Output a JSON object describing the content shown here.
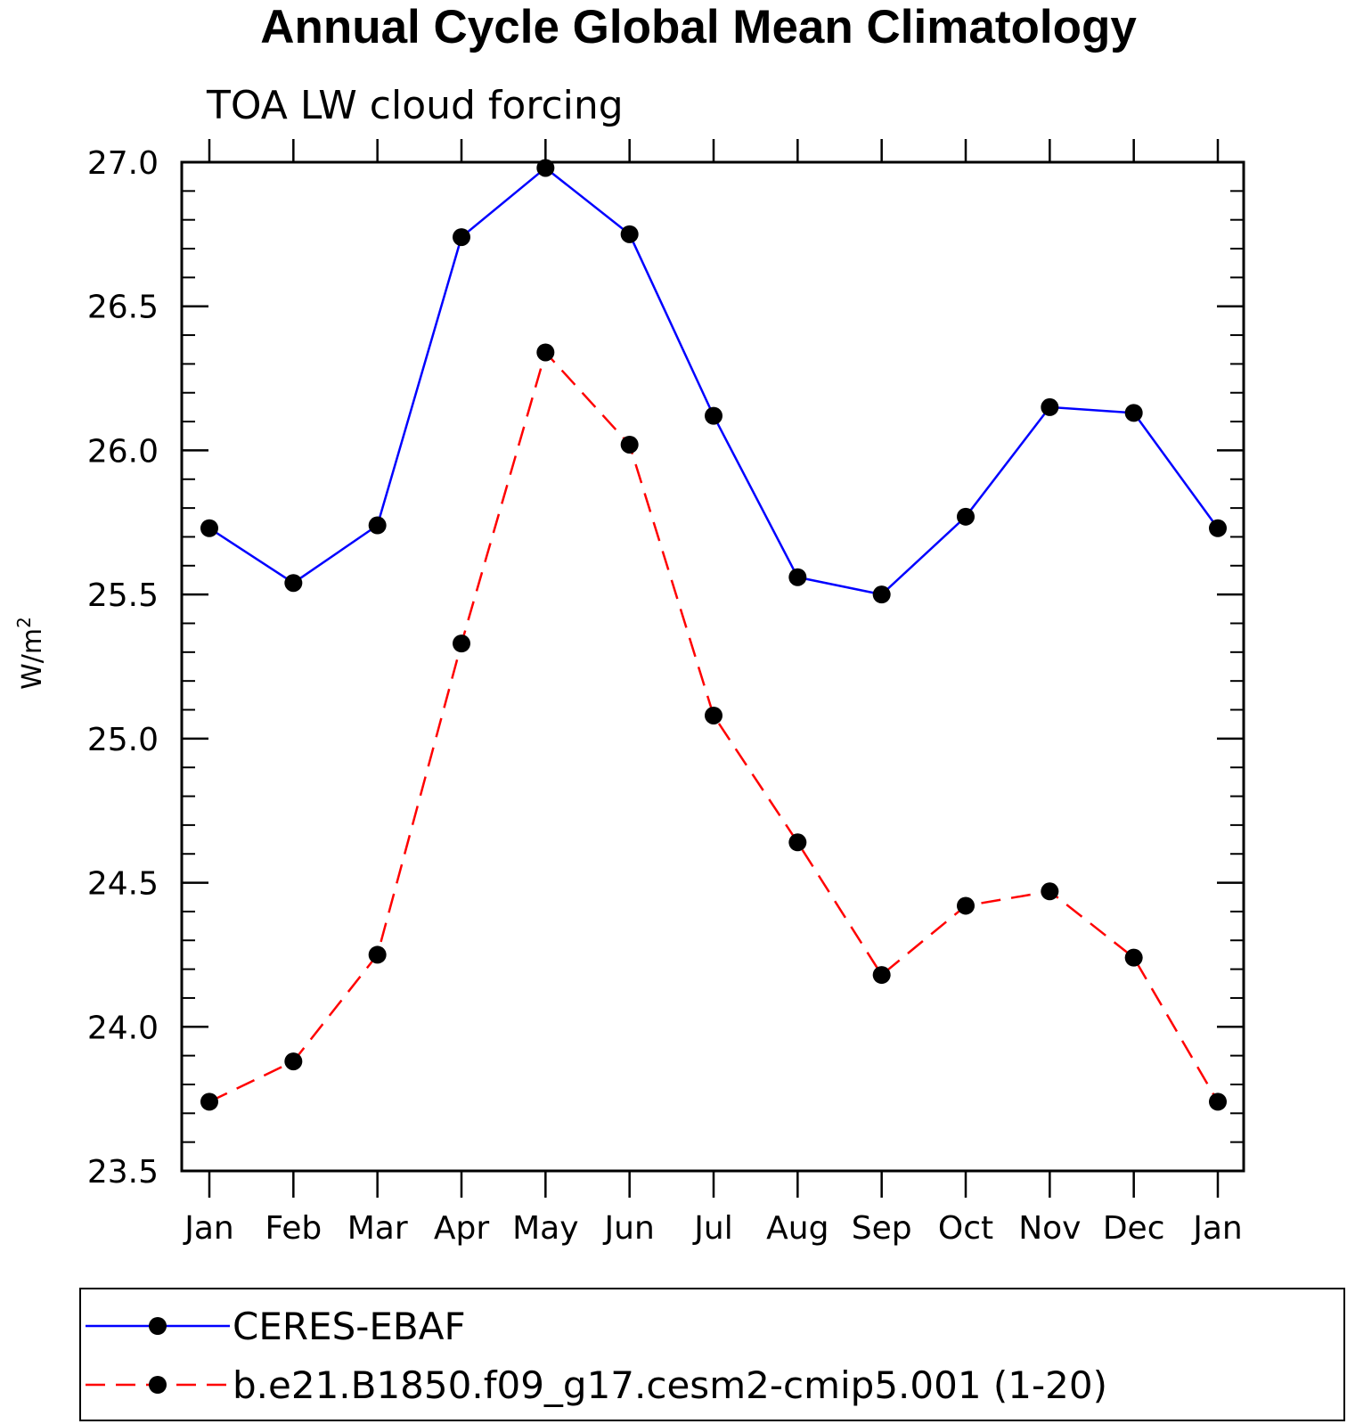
{
  "chart_data": {
    "type": "line",
    "title": "Annual Cycle Global Mean Climatology",
    "subtitle": "TOA LW cloud forcing",
    "ylabel": "W/m",
    "ylabel_superscript": "2",
    "xlabel": "",
    "categories": [
      "Jan",
      "Feb",
      "Mar",
      "Apr",
      "May",
      "Jun",
      "Jul",
      "Aug",
      "Sep",
      "Oct",
      "Nov",
      "Dec",
      "Jan"
    ],
    "ylim": [
      23.5,
      27.0
    ],
    "yticks": [
      "23.5",
      "24.0",
      "24.5",
      "25.0",
      "25.5",
      "26.0",
      "26.5",
      "27.0"
    ],
    "grid": false,
    "legend_position": "bottom",
    "series": [
      {
        "name": "CERES-EBAF",
        "color": "#0000ff",
        "dash": "solid",
        "marker": "filled-circle",
        "values": [
          25.73,
          25.54,
          25.74,
          26.74,
          26.98,
          26.75,
          26.12,
          25.56,
          25.5,
          25.77,
          26.15,
          26.13,
          25.73
        ]
      },
      {
        "name": "b.e21.B1850.f09_g17.cesm2-cmip5.001 (1-20)",
        "color": "#ff0000",
        "dash": "dashed",
        "marker": "filled-circle",
        "values": [
          23.74,
          23.88,
          24.25,
          25.33,
          26.34,
          26.02,
          25.08,
          24.64,
          24.18,
          24.42,
          24.47,
          24.24,
          23.74
        ]
      }
    ]
  }
}
